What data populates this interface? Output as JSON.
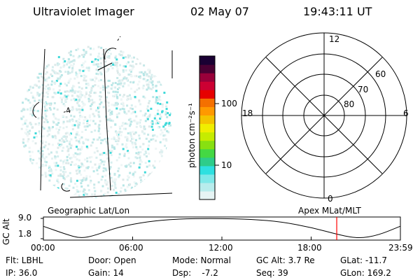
{
  "header": {
    "instrument": "Ultraviolet Imager",
    "date": "02 May 07",
    "time": "19:43:11 UT"
  },
  "colorbar": {
    "unit_label": "photon cm⁻²s⁻¹",
    "ticks": [
      {
        "label": "100",
        "value": 100
      },
      {
        "label": "10",
        "value": 10
      }
    ],
    "scale": "log",
    "colors": [
      "#e6f4f4",
      "#b8ecec",
      "#7fe8e8",
      "#2ee0e0",
      "#2ecc8a",
      "#44d844",
      "#88e011",
      "#c6ec00",
      "#f0ee00",
      "#f4c400",
      "#ff9900",
      "#f47000",
      "#e60000",
      "#cc0033",
      "#99003a",
      "#4a0033",
      "#1a0033"
    ]
  },
  "geographic_map": {
    "label": "Geographic Lat/Lon",
    "grid_label": "-4"
  },
  "polar_plot": {
    "label": "Apex  MLat/MLT",
    "mlt_labels": {
      "top": "12",
      "left": "18",
      "right": "6",
      "bottom": "0"
    },
    "lat_labels": [
      "60",
      "70",
      "80"
    ]
  },
  "orbit": {
    "ylabel": "GC Alt",
    "y_ticks": [
      "9.0",
      "1.8"
    ],
    "ylim": [
      1.8,
      9.0
    ],
    "x_ticks": [
      "00:00",
      "06:00",
      "12:00",
      "18:00",
      "23:59"
    ],
    "current_time_marker_hours": 19.72,
    "marker_color": "#ff0000",
    "altitude_profile": [
      {
        "t": 0.0,
        "alt": 6.2
      },
      {
        "t": 1.5,
        "alt": 3.4
      },
      {
        "t": 2.5,
        "alt": 1.9
      },
      {
        "t": 3.5,
        "alt": 3.0
      },
      {
        "t": 5.0,
        "alt": 5.9
      },
      {
        "t": 7.0,
        "alt": 7.9
      },
      {
        "t": 9.0,
        "alt": 8.8
      },
      {
        "t": 11.5,
        "alt": 9.0
      },
      {
        "t": 14.0,
        "alt": 8.7
      },
      {
        "t": 16.0,
        "alt": 7.8
      },
      {
        "t": 18.0,
        "alt": 5.8
      },
      {
        "t": 20.0,
        "alt": 3.0
      },
      {
        "t": 21.2,
        "alt": 1.9
      },
      {
        "t": 22.5,
        "alt": 3.0
      },
      {
        "t": 23.98,
        "alt": 6.2
      }
    ]
  },
  "info": {
    "row1": [
      "Flt: LBHL",
      "Door: Open",
      "Mode: Normal",
      "GC Alt: 3.7 Re",
      "GLat: -11.7"
    ],
    "row2": [
      "IP: 36.0",
      "Gain: 14",
      "Dsp:    -7.2",
      "Seq: 39",
      "GLon: 169.2"
    ]
  }
}
